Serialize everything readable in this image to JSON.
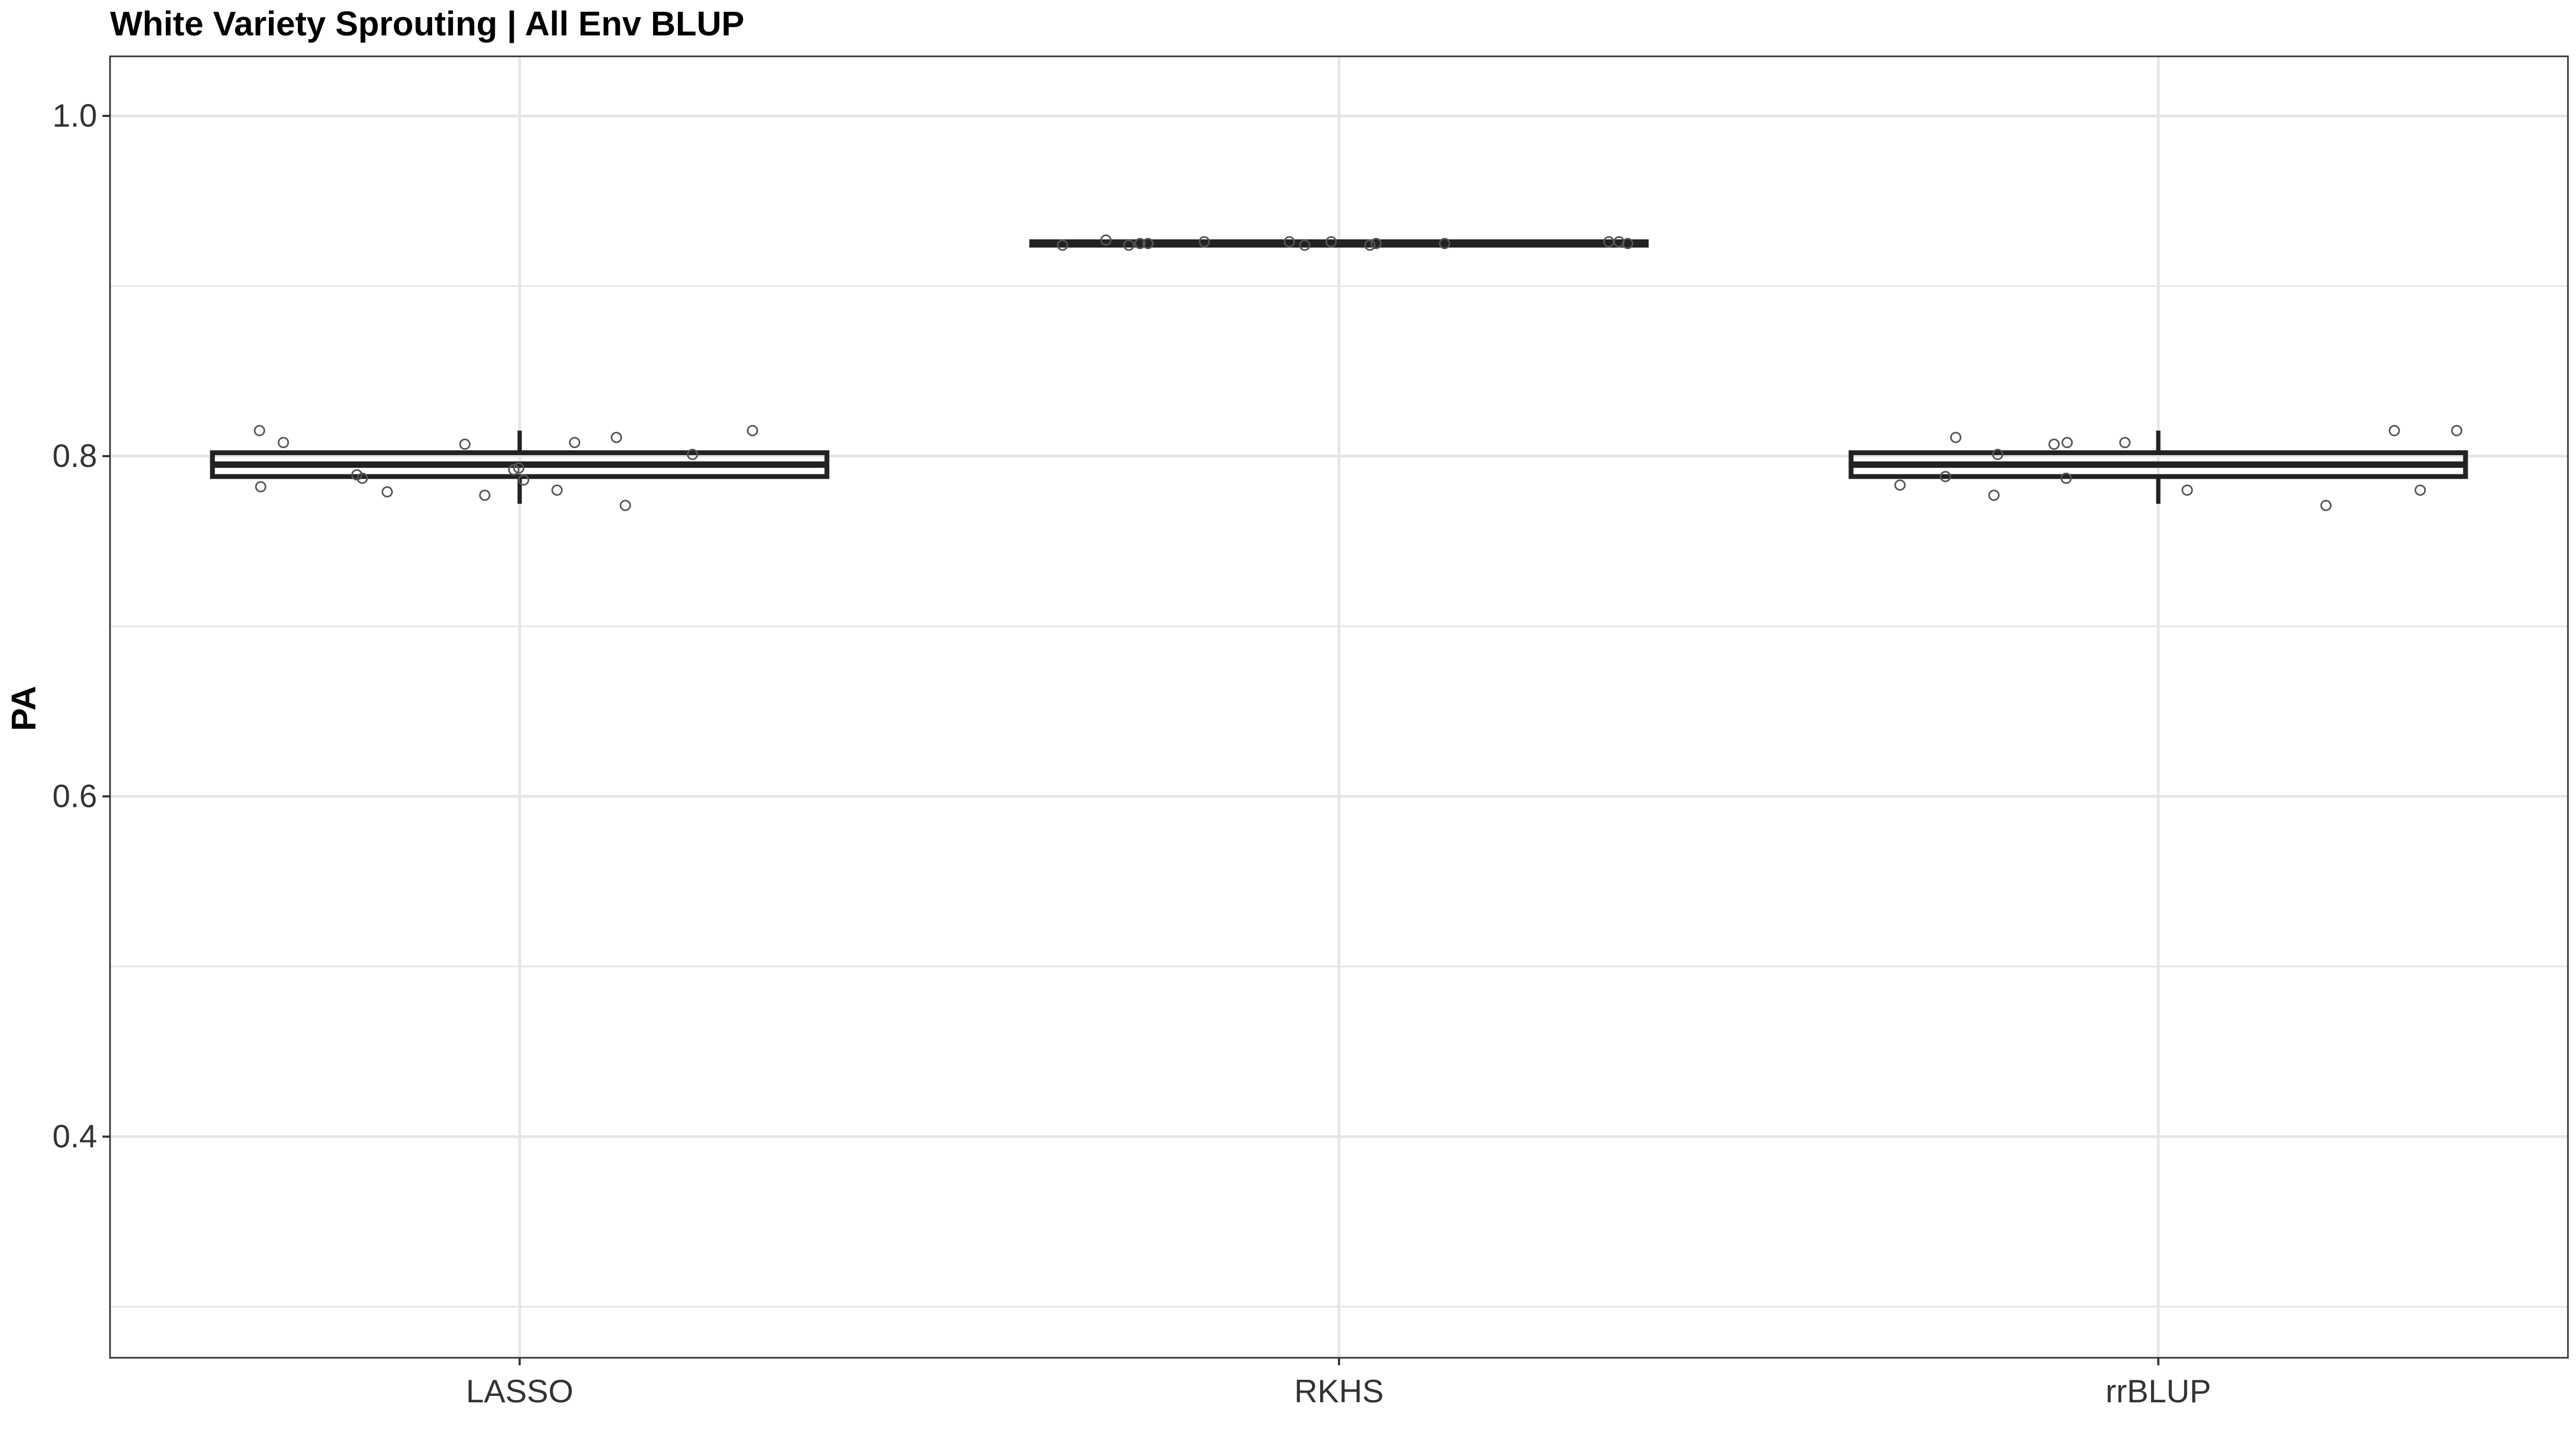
{
  "chart_data": {
    "type": "boxplot",
    "title": "White Variety Sprouting | All Env BLUP",
    "xlabel": "",
    "ylabel": "PA",
    "ylim": [
      0.27,
      1.035
    ],
    "y_ticks": [
      "0.4",
      "0.6",
      "0.8",
      "1.0"
    ],
    "grid": true,
    "categories": [
      "LASSO",
      "RKHS",
      "rrBLUP"
    ],
    "boxes": [
      {
        "category": "LASSO",
        "whisker_low": 0.772,
        "q1": 0.788,
        "median": 0.795,
        "q3": 0.802,
        "whisker_high": 0.815
      },
      {
        "category": "RKHS",
        "whisker_low": 0.923,
        "q1": 0.924,
        "median": 0.925,
        "q3": 0.926,
        "whisker_high": 0.927
      },
      {
        "category": "rrBLUP",
        "whisker_low": 0.772,
        "q1": 0.788,
        "median": 0.795,
        "q3": 0.802,
        "whisker_high": 0.815
      }
    ],
    "points": [
      {
        "category": "LASSO",
        "values": [
          0.792,
          0.78,
          0.808,
          0.787,
          0.777,
          0.786,
          0.782,
          0.815,
          0.808,
          0.807,
          0.779,
          0.801,
          0.811,
          0.815,
          0.793,
          0.789,
          0.771
        ]
      },
      {
        "category": "RKHS",
        "values": [
          0.924,
          0.925,
          0.926,
          0.925,
          0.924,
          0.926,
          0.925,
          0.927,
          0.924,
          0.926,
          0.925,
          0.926,
          0.924,
          0.925,
          0.926
        ]
      },
      {
        "category": "rrBLUP",
        "values": [
          0.811,
          0.815,
          0.808,
          0.777,
          0.78,
          0.807,
          0.788,
          0.771,
          0.808,
          0.787,
          0.783,
          0.78,
          0.801,
          0.815
        ]
      }
    ],
    "colors": {
      "box": "#222222",
      "point": "#555555",
      "grid": "#e5e5e5",
      "panel_border": "#333333"
    }
  }
}
